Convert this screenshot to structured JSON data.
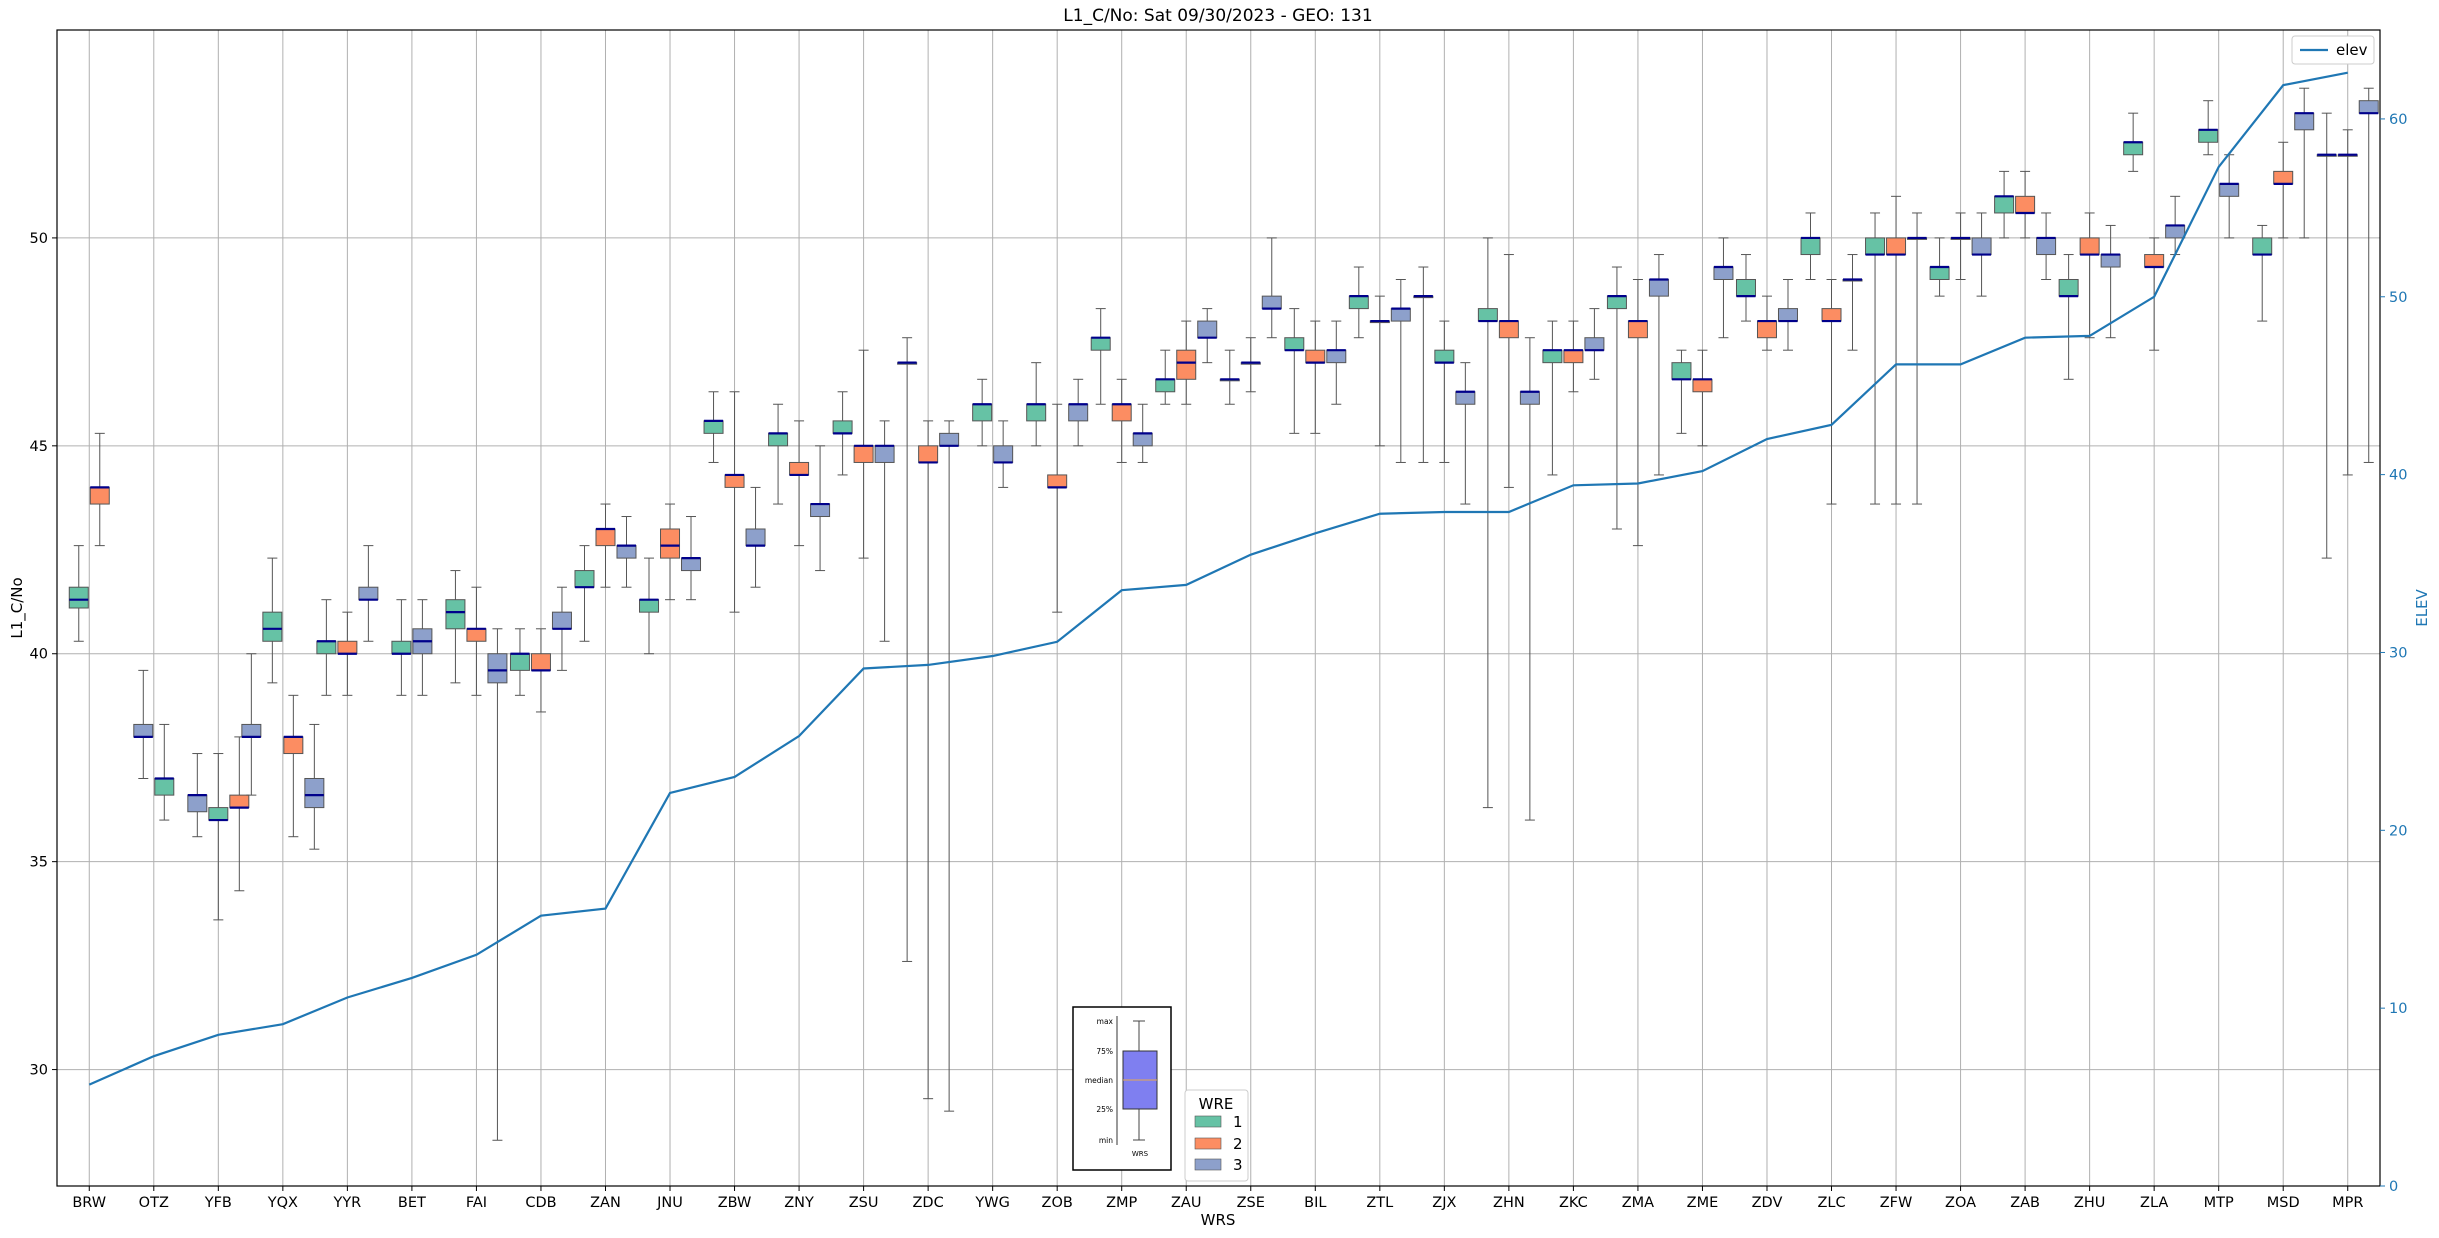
{
  "chart_data": {
    "type": "box",
    "title": "L1_C/No: Sat 09/30/2023 - GEO: 131",
    "xlabel": "WRS",
    "ylabel": "L1_C/No",
    "y2label": "ELEV",
    "ylim": [
      27.2,
      55.0
    ],
    "y2lim": [
      0,
      65
    ],
    "yticks": [
      30,
      35,
      40,
      45,
      50
    ],
    "y2ticks": [
      0,
      10,
      20,
      30,
      40,
      50,
      60
    ],
    "grid": true,
    "categories": [
      "BRW",
      "OTZ",
      "YFB",
      "YQX",
      "YYR",
      "BET",
      "FAI",
      "CDB",
      "ZAN",
      "JNU",
      "ZBW",
      "ZNY",
      "ZSU",
      "ZDC",
      "YWG",
      "ZOB",
      "ZMP",
      "ZAU",
      "ZSE",
      "BIL",
      "ZTL",
      "ZJX",
      "ZHN",
      "ZKC",
      "ZMA",
      "ZME",
      "ZDV",
      "ZLC",
      "ZFW",
      "ZOA",
      "ZAB",
      "ZHU",
      "ZLA",
      "MTP",
      "MSD",
      "MPR"
    ],
    "hue_legend": {
      "title": "WRE",
      "entries": [
        {
          "label": "1",
          "color": "#66c2a5"
        },
        {
          "label": "2",
          "color": "#fc8d62"
        },
        {
          "label": "3",
          "color": "#8da0cb"
        }
      ]
    },
    "boxes": [
      {
        "cat": "BRW",
        "wre": "1",
        "min": 40.3,
        "q1": 41.1,
        "median": 41.3,
        "q3": 41.6,
        "max": 42.6
      },
      {
        "cat": "BRW",
        "wre": "2",
        "min": 42.6,
        "q1": 43.6,
        "median": 44.0,
        "q3": 44.0,
        "max": 45.3
      },
      {
        "cat": "OTZ",
        "wre": "3",
        "min": 37.0,
        "q1": 38.0,
        "median": 38.0,
        "q3": 38.3,
        "max": 39.6
      },
      {
        "cat": "OTZ",
        "wre": "1",
        "min": 36.0,
        "q1": 36.6,
        "median": 37.0,
        "q3": 37.0,
        "max": 38.3
      },
      {
        "cat": "YFB",
        "wre": "3",
        "min": 35.6,
        "q1": 36.2,
        "median": 36.6,
        "q3": 36.6,
        "max": 37.6
      },
      {
        "cat": "YFB",
        "wre": "1",
        "min": 33.6,
        "q1": 36.0,
        "median": 36.0,
        "q3": 36.3,
        "max": 37.6
      },
      {
        "cat": "YFB",
        "wre": "2",
        "min": 34.3,
        "q1": 36.3,
        "median": 36.3,
        "q3": 36.6,
        "max": 38.0
      },
      {
        "cat": "YQX",
        "wre": "3",
        "min": 36.6,
        "q1": 38.0,
        "median": 38.0,
        "q3": 38.3,
        "max": 40.0
      },
      {
        "cat": "YQX",
        "wre": "1",
        "min": 39.3,
        "q1": 40.3,
        "median": 40.6,
        "q3": 41.0,
        "max": 42.3
      },
      {
        "cat": "YQX",
        "wre": "2",
        "min": 35.6,
        "q1": 37.6,
        "median": 38.0,
        "q3": 38.0,
        "max": 39.0
      },
      {
        "cat": "YQX",
        "wre": "3",
        "min": 35.3,
        "q1": 36.3,
        "median": 36.6,
        "q3": 37.0,
        "max": 38.3
      },
      {
        "cat": "YYR",
        "wre": "1",
        "min": 39.0,
        "q1": 40.0,
        "median": 40.3,
        "q3": 40.3,
        "max": 41.3
      },
      {
        "cat": "YYR",
        "wre": "2",
        "min": 39.0,
        "q1": 40.0,
        "median": 40.0,
        "q3": 40.3,
        "max": 41.0
      },
      {
        "cat": "YYR",
        "wre": "3",
        "min": 40.3,
        "q1": 41.3,
        "median": 41.3,
        "q3": 41.6,
        "max": 42.6
      },
      {
        "cat": "BET",
        "wre": "1",
        "min": 39.0,
        "q1": 40.0,
        "median": 40.0,
        "q3": 40.3,
        "max": 41.3
      },
      {
        "cat": "BET",
        "wre": "3",
        "min": 39.0,
        "q1": 40.0,
        "median": 40.3,
        "q3": 40.6,
        "max": 41.3
      },
      {
        "cat": "FAI",
        "wre": "1",
        "min": 39.3,
        "q1": 40.6,
        "median": 41.0,
        "q3": 41.3,
        "max": 42.0
      },
      {
        "cat": "FAI",
        "wre": "2",
        "min": 39.0,
        "q1": 40.3,
        "median": 40.6,
        "q3": 40.6,
        "max": 41.6
      },
      {
        "cat": "FAI",
        "wre": "3",
        "min": 28.3,
        "q1": 39.3,
        "median": 39.6,
        "q3": 40.0,
        "max": 40.6
      },
      {
        "cat": "CDB",
        "wre": "1",
        "min": 39.0,
        "q1": 39.6,
        "median": 40.0,
        "q3": 40.0,
        "max": 40.6
      },
      {
        "cat": "CDB",
        "wre": "2",
        "min": 38.6,
        "q1": 39.6,
        "median": 39.6,
        "q3": 40.0,
        "max": 40.6
      },
      {
        "cat": "CDB",
        "wre": "3",
        "min": 39.6,
        "q1": 40.6,
        "median": 40.6,
        "q3": 41.0,
        "max": 41.6
      },
      {
        "cat": "ZAN",
        "wre": "1",
        "min": 40.3,
        "q1": 41.6,
        "median": 41.6,
        "q3": 42.0,
        "max": 42.6
      },
      {
        "cat": "ZAN",
        "wre": "2",
        "min": 41.6,
        "q1": 42.6,
        "median": 43.0,
        "q3": 43.0,
        "max": 43.6
      },
      {
        "cat": "ZAN",
        "wre": "3",
        "min": 41.6,
        "q1": 42.3,
        "median": 42.6,
        "q3": 42.6,
        "max": 43.3
      },
      {
        "cat": "JNU",
        "wre": "1",
        "min": 40.0,
        "q1": 41.0,
        "median": 41.3,
        "q3": 41.3,
        "max": 42.3
      },
      {
        "cat": "JNU",
        "wre": "2",
        "min": 41.3,
        "q1": 42.3,
        "median": 42.6,
        "q3": 43.0,
        "max": 43.6
      },
      {
        "cat": "JNU",
        "wre": "3",
        "min": 41.3,
        "q1": 42.0,
        "median": 42.3,
        "q3": 42.3,
        "max": 43.3
      },
      {
        "cat": "ZBW",
        "wre": "1",
        "min": 44.6,
        "q1": 45.3,
        "median": 45.6,
        "q3": 45.6,
        "max": 46.3
      },
      {
        "cat": "ZBW",
        "wre": "2",
        "min": 41.0,
        "q1": 44.0,
        "median": 44.3,
        "q3": 44.3,
        "max": 46.3
      },
      {
        "cat": "ZBW",
        "wre": "3",
        "min": 41.6,
        "q1": 42.6,
        "median": 42.6,
        "q3": 43.0,
        "max": 44.0
      },
      {
        "cat": "ZNY",
        "wre": "1",
        "min": 43.6,
        "q1": 45.0,
        "median": 45.3,
        "q3": 45.3,
        "max": 46.0
      },
      {
        "cat": "ZNY",
        "wre": "2",
        "min": 42.6,
        "q1": 44.3,
        "median": 44.3,
        "q3": 44.6,
        "max": 45.6
      },
      {
        "cat": "ZNY",
        "wre": "3",
        "min": 42.0,
        "q1": 43.3,
        "median": 43.6,
        "q3": 43.6,
        "max": 45.0
      },
      {
        "cat": "ZSU",
        "wre": "1",
        "min": 44.3,
        "q1": 45.3,
        "median": 45.3,
        "q3": 45.6,
        "max": 46.3
      },
      {
        "cat": "ZSU",
        "wre": "2",
        "min": 42.3,
        "q1": 44.6,
        "median": 45.0,
        "q3": 45.0,
        "max": 47.3
      },
      {
        "cat": "ZSU",
        "wre": "3",
        "min": 40.3,
        "q1": 44.6,
        "median": 45.0,
        "q3": 45.0,
        "max": 45.6
      },
      {
        "cat": "ZDC",
        "wre": "1",
        "min": 32.6,
        "q1": 47.0,
        "median": 47.0,
        "q3": 47.0,
        "max": 47.6
      },
      {
        "cat": "ZDC",
        "wre": "2",
        "min": 29.3,
        "q1": 44.6,
        "median": 44.6,
        "q3": 45.0,
        "max": 45.6
      },
      {
        "cat": "ZDC",
        "wre": "3",
        "min": 29.0,
        "q1": 45.0,
        "median": 45.0,
        "q3": 45.3,
        "max": 45.6
      },
      {
        "cat": "YWG",
        "wre": "1",
        "min": 45.0,
        "q1": 45.6,
        "median": 46.0,
        "q3": 46.0,
        "max": 46.6
      },
      {
        "cat": "YWG",
        "wre": "3",
        "min": 44.0,
        "q1": 44.6,
        "median": 44.6,
        "q3": 45.0,
        "max": 45.6
      },
      {
        "cat": "ZOB",
        "wre": "1",
        "min": 45.0,
        "q1": 45.6,
        "median": 46.0,
        "q3": 46.0,
        "max": 47.0
      },
      {
        "cat": "ZOB",
        "wre": "2",
        "min": 41.0,
        "q1": 44.0,
        "median": 44.0,
        "q3": 44.3,
        "max": 46.0
      },
      {
        "cat": "ZOB",
        "wre": "3",
        "min": 45.0,
        "q1": 45.6,
        "median": 46.0,
        "q3": 46.0,
        "max": 46.6
      },
      {
        "cat": "ZMP",
        "wre": "1",
        "min": 46.0,
        "q1": 47.3,
        "median": 47.6,
        "q3": 47.6,
        "max": 48.3
      },
      {
        "cat": "ZMP",
        "wre": "2",
        "min": 44.6,
        "q1": 45.6,
        "median": 46.0,
        "q3": 46.0,
        "max": 46.6
      },
      {
        "cat": "ZMP",
        "wre": "3",
        "min": 44.6,
        "q1": 45.0,
        "median": 45.3,
        "q3": 45.3,
        "max": 46.0
      },
      {
        "cat": "ZAU",
        "wre": "1",
        "min": 46.0,
        "q1": 46.3,
        "median": 46.6,
        "q3": 46.6,
        "max": 47.3
      },
      {
        "cat": "ZAU",
        "wre": "2",
        "min": 46.0,
        "q1": 46.6,
        "median": 47.0,
        "q3": 47.3,
        "max": 48.0
      },
      {
        "cat": "ZAU",
        "wre": "3",
        "min": 47.0,
        "q1": 47.6,
        "median": 47.6,
        "q3": 48.0,
        "max": 48.3
      },
      {
        "cat": "ZSE",
        "wre": "1",
        "min": 46.0,
        "q1": 46.6,
        "median": 46.6,
        "q3": 46.6,
        "max": 47.3
      },
      {
        "cat": "ZSE",
        "wre": "3",
        "min": 46.3,
        "q1": 47.0,
        "median": 47.0,
        "q3": 47.0,
        "max": 47.6
      },
      {
        "cat": "ZSE",
        "wre": "3",
        "min": 47.6,
        "q1": 48.3,
        "median": 48.3,
        "q3": 48.6,
        "max": 50.0
      },
      {
        "cat": "BIL",
        "wre": "1",
        "min": 45.3,
        "q1": 47.3,
        "median": 47.3,
        "q3": 47.6,
        "max": 48.3
      },
      {
        "cat": "BIL",
        "wre": "2",
        "min": 45.3,
        "q1": 47.0,
        "median": 47.0,
        "q3": 47.3,
        "max": 48.0
      },
      {
        "cat": "BIL",
        "wre": "3",
        "min": 46.0,
        "q1": 47.0,
        "median": 47.3,
        "q3": 47.3,
        "max": 48.0
      },
      {
        "cat": "ZTL",
        "wre": "1",
        "min": 47.6,
        "q1": 48.3,
        "median": 48.6,
        "q3": 48.6,
        "max": 49.3
      },
      {
        "cat": "ZTL",
        "wre": "2",
        "min": 45.0,
        "q1": 48.0,
        "median": 48.0,
        "q3": 48.0,
        "max": 48.6
      },
      {
        "cat": "ZTL",
        "wre": "3",
        "min": 44.6,
        "q1": 48.0,
        "median": 48.3,
        "q3": 48.3,
        "max": 49.0
      },
      {
        "cat": "ZJX",
        "wre": "2",
        "min": 44.6,
        "q1": 48.6,
        "median": 48.6,
        "q3": 48.6,
        "max": 49.3
      },
      {
        "cat": "ZJX",
        "wre": "1",
        "min": 44.6,
        "q1": 47.0,
        "median": 47.0,
        "q3": 47.3,
        "max": 48.0
      },
      {
        "cat": "ZJX",
        "wre": "3",
        "min": 43.6,
        "q1": 46.0,
        "median": 46.3,
        "q3": 46.3,
        "max": 47.0
      },
      {
        "cat": "ZHN",
        "wre": "1",
        "min": 36.3,
        "q1": 48.0,
        "median": 48.0,
        "q3": 48.3,
        "max": 50.0
      },
      {
        "cat": "ZHN",
        "wre": "2",
        "min": 44.0,
        "q1": 47.6,
        "median": 48.0,
        "q3": 48.0,
        "max": 49.6
      },
      {
        "cat": "ZHN",
        "wre": "3",
        "min": 36.0,
        "q1": 46.0,
        "median": 46.3,
        "q3": 46.3,
        "max": 47.6
      },
      {
        "cat": "ZKC",
        "wre": "1",
        "min": 44.3,
        "q1": 47.0,
        "median": 47.3,
        "q3": 47.3,
        "max": 48.0
      },
      {
        "cat": "ZKC",
        "wre": "2",
        "min": 46.3,
        "q1": 47.0,
        "median": 47.3,
        "q3": 47.3,
        "max": 48.0
      },
      {
        "cat": "ZKC",
        "wre": "3",
        "min": 46.6,
        "q1": 47.3,
        "median": 47.3,
        "q3": 47.6,
        "max": 48.3
      },
      {
        "cat": "ZMA",
        "wre": "1",
        "min": 43.0,
        "q1": 48.3,
        "median": 48.6,
        "q3": 48.6,
        "max": 49.3
      },
      {
        "cat": "ZMA",
        "wre": "2",
        "min": 42.6,
        "q1": 47.6,
        "median": 48.0,
        "q3": 48.0,
        "max": 49.0
      },
      {
        "cat": "ZMA",
        "wre": "3",
        "min": 44.3,
        "q1": 48.6,
        "median": 49.0,
        "q3": 49.0,
        "max": 49.6
      },
      {
        "cat": "ZME",
        "wre": "1",
        "min": 45.3,
        "q1": 46.6,
        "median": 46.6,
        "q3": 47.0,
        "max": 47.3
      },
      {
        "cat": "ZME",
        "wre": "2",
        "min": 45.0,
        "q1": 46.3,
        "median": 46.6,
        "q3": 46.6,
        "max": 47.3
      },
      {
        "cat": "ZME",
        "wre": "3",
        "min": 47.6,
        "q1": 49.0,
        "median": 49.3,
        "q3": 49.3,
        "max": 50.0
      },
      {
        "cat": "ZDV",
        "wre": "1",
        "min": 48.0,
        "q1": 48.6,
        "median": 48.6,
        "q3": 49.0,
        "max": 49.6
      },
      {
        "cat": "ZDV",
        "wre": "2",
        "min": 47.3,
        "q1": 47.6,
        "median": 48.0,
        "q3": 48.0,
        "max": 48.6
      },
      {
        "cat": "ZDV",
        "wre": "3",
        "min": 47.3,
        "q1": 48.0,
        "median": 48.0,
        "q3": 48.3,
        "max": 49.0
      },
      {
        "cat": "ZLC",
        "wre": "1",
        "min": 49.0,
        "q1": 49.6,
        "median": 50.0,
        "q3": 50.0,
        "max": 50.6
      },
      {
        "cat": "ZLC",
        "wre": "2",
        "min": 43.6,
        "q1": 48.0,
        "median": 48.0,
        "q3": 48.3,
        "max": 49.0
      },
      {
        "cat": "ZLC",
        "wre": "3",
        "min": 47.3,
        "q1": 49.0,
        "median": 49.0,
        "q3": 49.0,
        "max": 49.6
      },
      {
        "cat": "ZFW",
        "wre": "1",
        "min": 43.6,
        "q1": 49.6,
        "median": 49.6,
        "q3": 50.0,
        "max": 50.6
      },
      {
        "cat": "ZFW",
        "wre": "2",
        "min": 43.6,
        "q1": 49.6,
        "median": 49.6,
        "q3": 50.0,
        "max": 51.0
      },
      {
        "cat": "ZFW",
        "wre": "3",
        "min": 43.6,
        "q1": 50.0,
        "median": 50.0,
        "q3": 50.0,
        "max": 50.6
      },
      {
        "cat": "ZOA",
        "wre": "1",
        "min": 48.6,
        "q1": 49.0,
        "median": 49.3,
        "q3": 49.3,
        "max": 50.0
      },
      {
        "cat": "ZOA",
        "wre": "2",
        "min": 49.0,
        "q1": 50.0,
        "median": 50.0,
        "q3": 50.0,
        "max": 50.6
      },
      {
        "cat": "ZOA",
        "wre": "3",
        "min": 48.6,
        "q1": 49.6,
        "median": 49.6,
        "q3": 50.0,
        "max": 50.6
      },
      {
        "cat": "ZAB",
        "wre": "1",
        "min": 50.0,
        "q1": 50.6,
        "median": 51.0,
        "q3": 51.0,
        "max": 51.6
      },
      {
        "cat": "ZAB",
        "wre": "2",
        "min": 50.0,
        "q1": 50.6,
        "median": 50.6,
        "q3": 51.0,
        "max": 51.6
      },
      {
        "cat": "ZAB",
        "wre": "3",
        "min": 49.0,
        "q1": 49.6,
        "median": 50.0,
        "q3": 50.0,
        "max": 50.6
      },
      {
        "cat": "ZHU",
        "wre": "1",
        "min": 46.6,
        "q1": 48.6,
        "median": 48.6,
        "q3": 49.0,
        "max": 49.6
      },
      {
        "cat": "ZHU",
        "wre": "2",
        "min": 47.6,
        "q1": 49.6,
        "median": 49.6,
        "q3": 50.0,
        "max": 50.6
      },
      {
        "cat": "ZHU",
        "wre": "3",
        "min": 47.6,
        "q1": 49.3,
        "median": 49.6,
        "q3": 49.6,
        "max": 50.3
      },
      {
        "cat": "ZLA",
        "wre": "1",
        "min": 51.6,
        "q1": 52.0,
        "median": 52.3,
        "q3": 52.3,
        "max": 53.0
      },
      {
        "cat": "ZLA",
        "wre": "2",
        "min": 47.3,
        "q1": 49.3,
        "median": 49.3,
        "q3": 49.6,
        "max": 50.0
      },
      {
        "cat": "ZLA",
        "wre": "3",
        "min": 49.6,
        "q1": 50.0,
        "median": 50.3,
        "q3": 50.3,
        "max": 51.0
      },
      {
        "cat": "MTP",
        "wre": "1",
        "min": 52.0,
        "q1": 52.3,
        "median": 52.6,
        "q3": 52.6,
        "max": 53.3
      },
      {
        "cat": "MTP",
        "wre": "3",
        "min": 50.0,
        "q1": 51.0,
        "median": 51.3,
        "q3": 51.3,
        "max": 52.0
      },
      {
        "cat": "MSD",
        "wre": "1",
        "min": 48.0,
        "q1": 49.6,
        "median": 49.6,
        "q3": 50.0,
        "max": 50.3
      },
      {
        "cat": "MSD",
        "wre": "2",
        "min": 50.0,
        "q1": 51.3,
        "median": 51.3,
        "q3": 51.6,
        "max": 52.3
      },
      {
        "cat": "MSD",
        "wre": "3",
        "min": 50.0,
        "q1": 52.6,
        "median": 53.0,
        "q3": 53.0,
        "max": 53.6
      },
      {
        "cat": "MPR",
        "wre": "1",
        "min": 42.3,
        "q1": 52.0,
        "median": 52.0,
        "q3": 52.0,
        "max": 53.0
      },
      {
        "cat": "MPR",
        "wre": "2",
        "min": 44.3,
        "q1": 52.0,
        "median": 52.0,
        "q3": 52.0,
        "max": 52.6
      },
      {
        "cat": "MPR",
        "wre": "3",
        "min": 44.6,
        "q1": 53.0,
        "median": 53.0,
        "q3": 53.3,
        "max": 53.6
      }
    ],
    "series": [
      {
        "name": "elev",
        "axis": "right",
        "color": "#1f77b4",
        "values": [
          5.7,
          7.3,
          8.5,
          9.1,
          10.6,
          11.7,
          13.0,
          15.2,
          15.6,
          22.1,
          23.0,
          25.3,
          29.1,
          29.3,
          29.8,
          30.6,
          33.5,
          33.8,
          35.5,
          36.7,
          37.8,
          37.9,
          37.9,
          39.4,
          39.5,
          40.2,
          42.0,
          42.8,
          46.2,
          46.2,
          47.7,
          47.8,
          50.0,
          57.3,
          61.9,
          62.6
        ]
      }
    ],
    "legend": {
      "position": "top-right",
      "entries": [
        "elev"
      ]
    },
    "key_inset": {
      "labels": [
        "max",
        "75%",
        "median",
        "25%",
        "min"
      ],
      "xlabel": "WRS"
    }
  }
}
